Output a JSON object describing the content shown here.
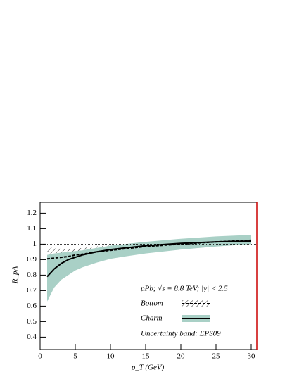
{
  "chart_data": {
    "type": "line",
    "x_label": "p_T (GeV)",
    "y_label": "R_pA",
    "annotation": "pPb; √s = 8.8 TeV; |y| < 2.5",
    "band_label": "Uncertainty band: EPS09",
    "reference_line": 1,
    "xlim": [
      0,
      30.8
    ],
    "ylim": [
      0.32,
      1.27
    ],
    "xticks": [
      0,
      5,
      10,
      15,
      20,
      25,
      30
    ],
    "yticks": [
      0.4,
      0.5,
      0.6,
      0.7,
      0.8,
      0.9,
      1,
      1.1,
      1.2
    ],
    "series": [
      {
        "name": "Bottom",
        "color": "#000000",
        "band_style": "hatch",
        "x": [
          1,
          2,
          3,
          4,
          5,
          6,
          8,
          10,
          12,
          15,
          20,
          25,
          30
        ],
        "values": [
          0.905,
          0.91,
          0.915,
          0.92,
          0.93,
          0.935,
          0.95,
          0.96,
          0.97,
          0.985,
          1.0,
          1.015,
          1.025
        ],
        "lower": [
          0.83,
          0.85,
          0.86,
          0.87,
          0.885,
          0.895,
          0.915,
          0.93,
          0.945,
          0.96,
          0.98,
          0.995,
          1.005
        ],
        "upper": [
          0.98,
          0.975,
          0.97,
          0.97,
          0.97,
          0.975,
          0.985,
          0.995,
          1.0,
          1.01,
          1.03,
          1.045,
          1.055
        ]
      },
      {
        "name": "Charm",
        "color": "#000000",
        "band_style": "fill",
        "band_color": "#a9d0c6",
        "x": [
          1,
          2,
          3,
          4,
          5,
          6,
          8,
          10,
          12,
          15,
          20,
          25,
          30
        ],
        "values": [
          0.79,
          0.84,
          0.875,
          0.9,
          0.915,
          0.93,
          0.95,
          0.965,
          0.975,
          0.99,
          1.005,
          1.015,
          1.02
        ],
        "lower": [
          0.63,
          0.72,
          0.77,
          0.8,
          0.83,
          0.85,
          0.88,
          0.905,
          0.92,
          0.94,
          0.965,
          0.985,
          1.0
        ],
        "upper": [
          0.93,
          0.94,
          0.945,
          0.95,
          0.955,
          0.96,
          0.975,
          0.99,
          1.0,
          1.015,
          1.035,
          1.05,
          1.06
        ]
      }
    ]
  }
}
